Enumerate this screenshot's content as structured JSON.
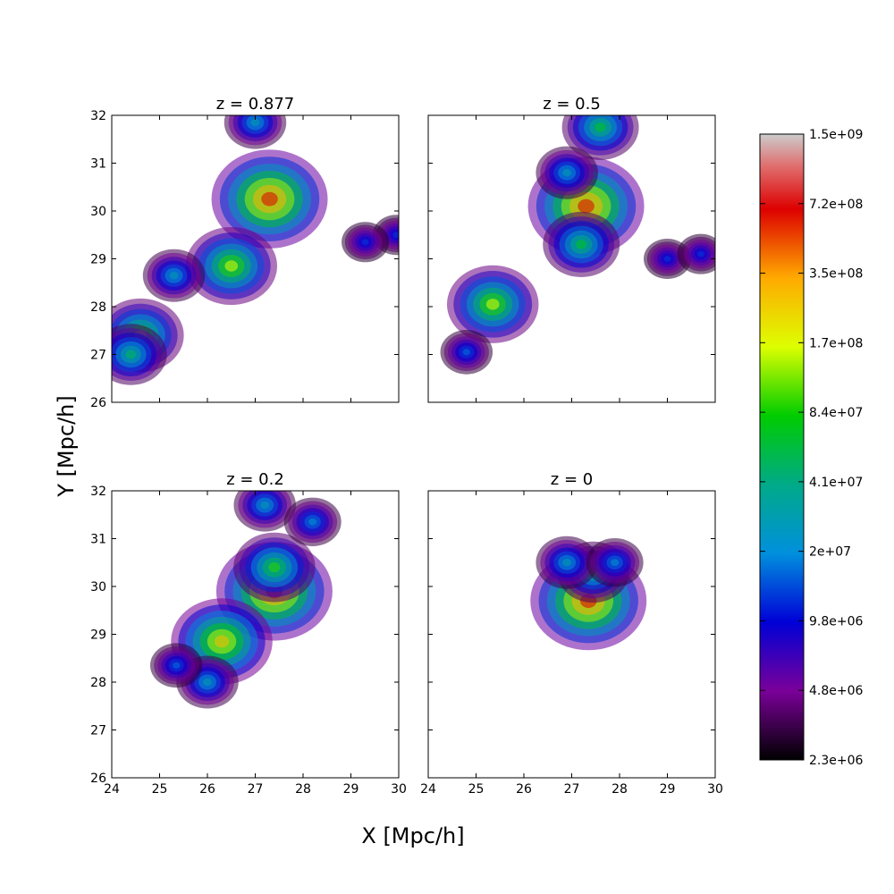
{
  "figure": {
    "xlabel": "X [Mpc/h]",
    "ylabel": "Y [Mpc/h]"
  },
  "chart_data": [
    {
      "type": "heatmap",
      "title": "z = 0.877",
      "xlim": [
        24,
        30
      ],
      "ylim": [
        26,
        32
      ],
      "x_ticks": [],
      "y_ticks": [
        "26",
        "27",
        "28",
        "29",
        "30",
        "31",
        "32"
      ],
      "clumps": [
        {
          "x": 27.3,
          "y": 30.25,
          "peak": 1.0
        },
        {
          "x": 26.5,
          "y": 28.85,
          "peak": 0.75
        },
        {
          "x": 24.6,
          "y": 27.4,
          "peak": 0.7
        },
        {
          "x": 24.4,
          "y": 27.0,
          "peak": 0.55
        },
        {
          "x": 25.3,
          "y": 28.65,
          "peak": 0.45
        },
        {
          "x": 27.0,
          "y": 31.85,
          "peak": 0.45
        },
        {
          "x": 29.95,
          "y": 29.5,
          "peak": 0.3
        },
        {
          "x": 29.3,
          "y": 29.35,
          "peak": 0.3
        }
      ]
    },
    {
      "type": "heatmap",
      "title": "z = 0.5",
      "xlim": [
        24,
        30
      ],
      "ylim": [
        26,
        32
      ],
      "x_ticks": [],
      "y_ticks": [],
      "clumps": [
        {
          "x": 27.3,
          "y": 30.1,
          "peak": 1.0
        },
        {
          "x": 25.35,
          "y": 28.05,
          "peak": 0.75
        },
        {
          "x": 27.2,
          "y": 29.3,
          "peak": 0.6
        },
        {
          "x": 27.6,
          "y": 31.75,
          "peak": 0.6
        },
        {
          "x": 26.9,
          "y": 30.8,
          "peak": 0.45
        },
        {
          "x": 24.8,
          "y": 27.05,
          "peak": 0.35
        },
        {
          "x": 29.0,
          "y": 29.0,
          "peak": 0.3
        },
        {
          "x": 29.7,
          "y": 29.1,
          "peak": 0.3
        }
      ]
    },
    {
      "type": "heatmap",
      "title": "z = 0.2",
      "xlim": [
        24,
        30
      ],
      "ylim": [
        26,
        32
      ],
      "x_ticks": [
        "24",
        "25",
        "26",
        "27",
        "28",
        "29",
        "30"
      ],
      "y_ticks": [
        "26",
        "27",
        "28",
        "29",
        "30",
        "31",
        "32"
      ],
      "clumps": [
        {
          "x": 27.4,
          "y": 29.9,
          "peak": 1.0
        },
        {
          "x": 26.3,
          "y": 28.85,
          "peak": 0.85
        },
        {
          "x": 27.4,
          "y": 30.4,
          "peak": 0.65
        },
        {
          "x": 26.0,
          "y": 28.0,
          "peak": 0.45
        },
        {
          "x": 27.2,
          "y": 31.7,
          "peak": 0.45
        },
        {
          "x": 28.2,
          "y": 31.35,
          "peak": 0.4
        },
        {
          "x": 25.35,
          "y": 28.35,
          "peak": 0.35
        }
      ]
    },
    {
      "type": "heatmap",
      "title": "z = 0",
      "xlim": [
        24,
        30
      ],
      "ylim": [
        26,
        32
      ],
      "x_ticks": [
        "24",
        "25",
        "26",
        "27",
        "28",
        "29",
        "30"
      ],
      "y_ticks": [],
      "clumps": [
        {
          "x": 27.35,
          "y": 29.7,
          "peak": 1.0
        },
        {
          "x": 27.45,
          "y": 30.3,
          "peak": 0.55
        },
        {
          "x": 26.9,
          "y": 30.5,
          "peak": 0.45
        },
        {
          "x": 27.9,
          "y": 30.5,
          "peak": 0.4
        }
      ]
    }
  ],
  "colorbar": {
    "tick_labels": [
      "2.3e+06",
      "4.8e+06",
      "9.8e+06",
      "2e+07",
      "4.1e+07",
      "8.4e+07",
      "1.7e+08",
      "3.5e+08",
      "7.2e+08",
      "1.5e+09"
    ],
    "colors": [
      "#000000",
      "#7a0099",
      "#0000d6",
      "#0090dd",
      "#00aa88",
      "#00cc00",
      "#ddff00",
      "#ffaa00",
      "#dd0000",
      "#cccccc"
    ]
  }
}
